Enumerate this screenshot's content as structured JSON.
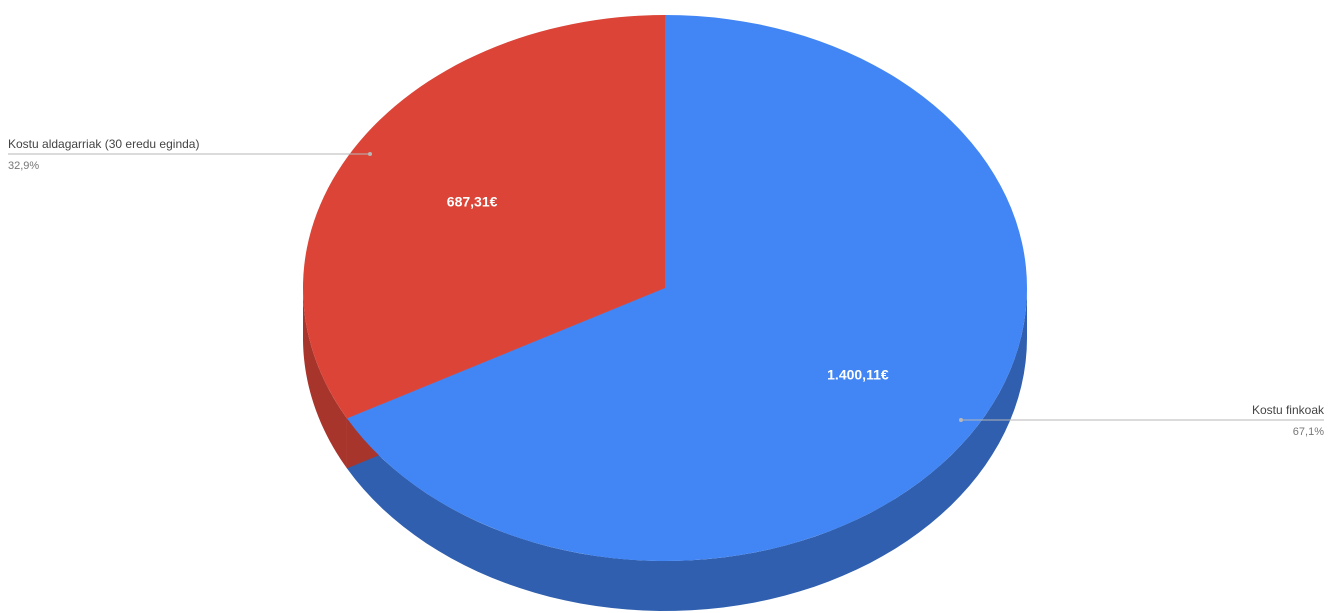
{
  "chart_data": {
    "type": "pie",
    "three_d": true,
    "slices": [
      {
        "name": "Kostu aldagarriak (30 eredu eginda)",
        "value": 687.31,
        "value_label": "687,31€",
        "percent_label": "32,9%",
        "color": "#db4437",
        "side_color": "#a8352c"
      },
      {
        "name": "Kostu finkoak",
        "value": 1400.11,
        "value_label": "1.400,11€",
        "percent_label": "67,1%",
        "color": "#4285f4",
        "side_color": "#2f5fae"
      }
    ],
    "legend_placement": "callouts",
    "leader_color": "#b7b7b7"
  }
}
